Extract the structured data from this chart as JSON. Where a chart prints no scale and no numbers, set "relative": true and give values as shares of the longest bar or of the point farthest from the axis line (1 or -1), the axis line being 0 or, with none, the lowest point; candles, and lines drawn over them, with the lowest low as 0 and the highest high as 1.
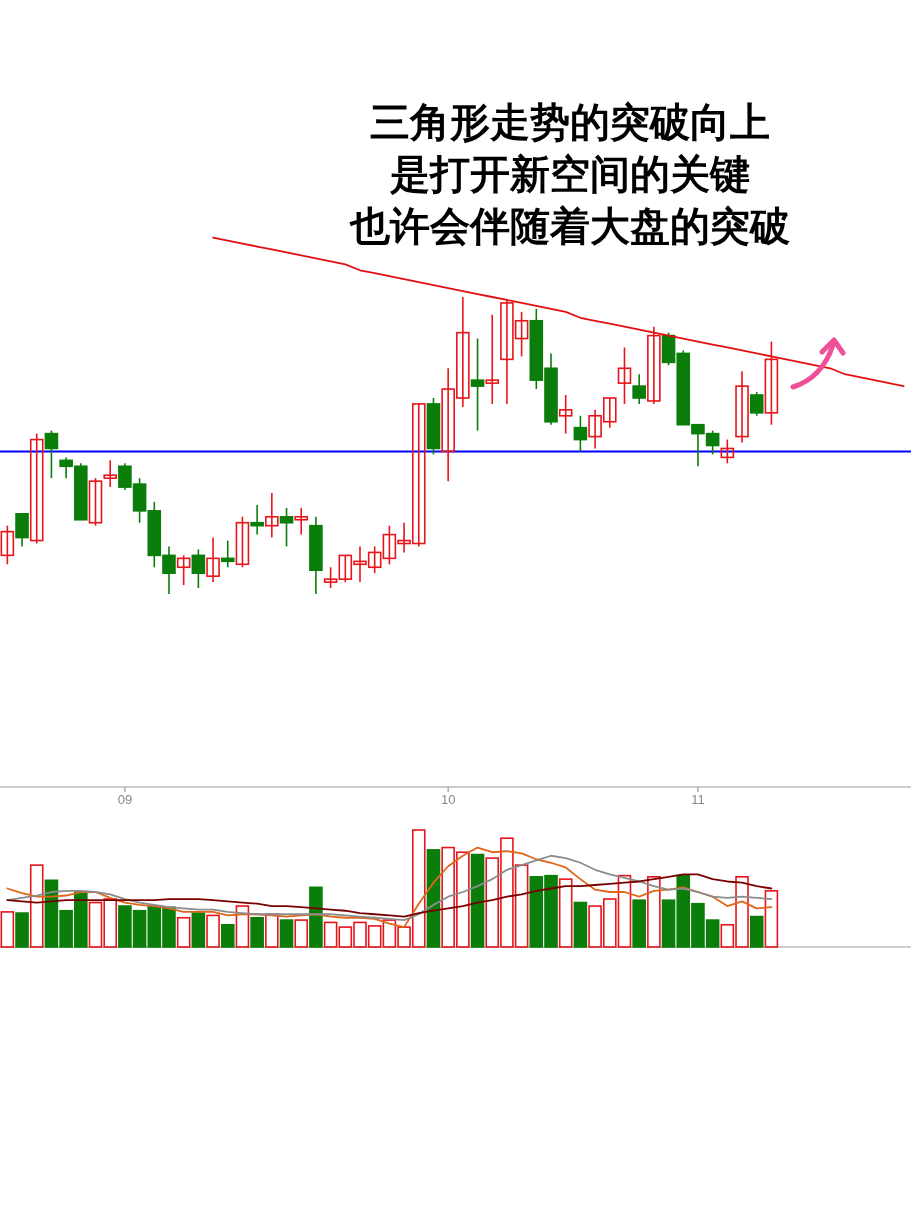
{
  "chart_data": [
    {
      "type": "candlestick",
      "relative": true,
      "annotations": [
        "三角形走势的突破向上",
        "是打开新空间的关键",
        "也许会伴随着大盘的突破"
      ],
      "categories": [
        null,
        null,
        null,
        null,
        null,
        null,
        null,
        null,
        "09",
        null,
        null,
        null,
        null,
        null,
        null,
        null,
        null,
        null,
        null,
        null,
        null,
        null,
        null,
        null,
        null,
        null,
        null,
        null,
        null,
        null,
        "10",
        null,
        null,
        null,
        null,
        null,
        null,
        null,
        null,
        null,
        null,
        null,
        null,
        null,
        null,
        null,
        null,
        "11",
        null,
        null,
        null,
        null,
        null,
        null,
        null,
        null,
        null,
        null,
        null,
        null,
        null,
        null
      ],
      "ohlc": [
        [
          0.13,
          0.23,
          0.1,
          0.21
        ],
        [
          0.27,
          0.27,
          0.16,
          0.19
        ],
        [
          0.18,
          0.54,
          0.17,
          0.52
        ],
        [
          0.54,
          0.55,
          0.39,
          0.49
        ],
        [
          0.45,
          0.46,
          0.39,
          0.43
        ],
        [
          0.43,
          0.44,
          0.25,
          0.25
        ],
        [
          0.24,
          0.39,
          0.23,
          0.38
        ],
        [
          0.39,
          0.45,
          0.36,
          0.4
        ],
        [
          0.43,
          0.44,
          0.35,
          0.36
        ],
        [
          0.37,
          0.39,
          0.24,
          0.28
        ],
        [
          0.28,
          0.31,
          0.09,
          0.13
        ],
        [
          0.13,
          0.16,
          0.0,
          0.07
        ],
        [
          0.09,
          0.13,
          0.03,
          0.12
        ],
        [
          0.13,
          0.15,
          0.02,
          0.07
        ],
        [
          0.06,
          0.19,
          0.04,
          0.12
        ],
        [
          0.12,
          0.18,
          0.09,
          0.11
        ],
        [
          0.1,
          0.26,
          0.09,
          0.24
        ],
        [
          0.24,
          0.3,
          0.2,
          0.23
        ],
        [
          0.23,
          0.34,
          0.19,
          0.26
        ],
        [
          0.26,
          0.29,
          0.16,
          0.24
        ],
        [
          0.25,
          0.29,
          0.2,
          0.26
        ],
        [
          0.23,
          0.26,
          0,
          0.08
        ],
        [
          0.04,
          0.09,
          0.02,
          0.05
        ],
        [
          0.05,
          0.13,
          0.04,
          0.13
        ],
        [
          0.1,
          0.16,
          0.04,
          0.11
        ],
        [
          0.09,
          0.16,
          0.07,
          0.14
        ],
        [
          0.12,
          0.23,
          0.1,
          0.2
        ],
        [
          0.17,
          0.24,
          0.14,
          0.18
        ],
        [
          0.17,
          0.64,
          0.16,
          0.64
        ],
        [
          0.64,
          0.66,
          0.47,
          0.49
        ],
        [
          0.48,
          0.76,
          0.38,
          0.69
        ],
        [
          0.66,
          1,
          0.63,
          0.88
        ],
        [
          0.72,
          0.86,
          0.55,
          0.7
        ],
        [
          0.71,
          0.94,
          0.64,
          0.72
        ],
        [
          0.79,
          0.99,
          0.64,
          0.98
        ],
        [
          0.86,
          0.95,
          0.8,
          0.92
        ],
        [
          0.92,
          0.96,
          0.69,
          0.72
        ],
        [
          0.76,
          0.81,
          0.57,
          0.58
        ],
        [
          0.6,
          0.67,
          0.54,
          0.62
        ],
        [
          0.56,
          0.6,
          0.48,
          0.52
        ],
        [
          0.53,
          0.62,
          0.49,
          0.6
        ],
        [
          0.58,
          0.66,
          0.56,
          0.66
        ],
        [
          0.71,
          0.83,
          0.64,
          0.76
        ],
        [
          0.7,
          0.74,
          0.64,
          0.66
        ],
        [
          0.65,
          0.9,
          0.64,
          0.87
        ],
        [
          0.87,
          0.88,
          0.77,
          0.78
        ],
        [
          0.81,
          0.82,
          0.57,
          0.57
        ],
        [
          0.57,
          0.57,
          0.43,
          0.54
        ],
        [
          0.54,
          0.55,
          0.47,
          0.5
        ],
        [
          0.46,
          0.52,
          0.44,
          0.49
        ],
        [
          0.53,
          0.75,
          0.51,
          0.7
        ],
        [
          0.67,
          0.68,
          0.6,
          0.61
        ],
        [
          0.61,
          0.85,
          0.57,
          0.79
        ],
        null,
        null,
        null,
        null,
        null,
        null,
        null,
        null,
        null
      ],
      "colors": [
        "#e8141b",
        "#0a7d0a",
        "#e8141b",
        "#0a7d0a",
        "#0a7d0a",
        "#0a7d0a",
        "#e8141b",
        "#e8141b",
        "#0a7d0a",
        "#0a7d0a",
        "#0a7d0a",
        "#0a7d0a",
        "#e8141b",
        "#0a7d0a",
        "#e8141b",
        "#0a7d0a",
        "#e8141b",
        "#0a7d0a",
        "#e8141b",
        "#0a7d0a",
        "#e8141b",
        "#0a7d0a",
        "#e8141b",
        "#e8141b",
        "#e8141b",
        "#e8141b",
        "#e8141b",
        "#e8141b",
        "#e8141b",
        "#0a7d0a",
        "#e8141b",
        "#e8141b",
        "#0a7d0a",
        "#e8141b",
        "#e8141b",
        "#e8141b",
        "#0a7d0a",
        "#0a7d0a",
        "#e8141b",
        "#0a7d0a",
        "#e8141b",
        "#e8141b",
        "#e8141b",
        "#0a7d0a",
        "#e8141b",
        "#0a7d0a",
        "#0a7d0a",
        "#0a7d0a",
        "#0a7d0a",
        "#e8141b",
        "#e8141b",
        "#0a7d0a",
        "#e8141b",
        null,
        null,
        null,
        null,
        null,
        null,
        null,
        null,
        null
      ],
      "series": [
        {
          "type": "line",
          "color": "#e01010",
          "values": [
            null,
            null,
            null,
            null,
            null,
            null,
            null,
            null,
            null,
            null,
            null,
            null,
            null,
            null,
            1.2,
            1.19,
            1.18,
            1.17,
            1.16,
            1.15,
            1.14,
            1.13,
            1.12,
            1.11,
            1.09,
            1.08,
            1.07,
            1.06,
            1.05,
            1.04,
            1.03,
            1.02,
            1.01,
            1.0,
            0.99,
            0.98,
            0.97,
            0.96,
            0.95,
            0.93,
            0.92,
            0.91,
            0.9,
            0.89,
            0.88,
            0.87,
            0.86,
            0.85,
            0.84,
            0.83,
            0.82,
            0.81,
            0.8,
            0.79,
            0.78,
            0.77,
            0.76,
            0.74,
            0.73,
            0.72,
            0.71,
            0.7
          ]
        }
      ],
      "ref_lines": [
        {
          "axis": "y",
          "value": 0.48,
          "color": "#0000ff"
        }
      ]
    },
    {
      "type": "bar",
      "relative": true,
      "categories": [
        null,
        null,
        null,
        null,
        null,
        null,
        null,
        null,
        null,
        null,
        null,
        null,
        null,
        null,
        null,
        null,
        null,
        null,
        null,
        null,
        null,
        null,
        null,
        null,
        null,
        null,
        null,
        null,
        null,
        null,
        null,
        null,
        null,
        null,
        null,
        null,
        null,
        null,
        null,
        null,
        null,
        null,
        null,
        null,
        null,
        null,
        null,
        null,
        null,
        null,
        null,
        null,
        null,
        null,
        null,
        null,
        null,
        null,
        null,
        null,
        null,
        null
      ],
      "series": [
        {
          "type": "bar",
          "values": [
            0.3,
            0.29,
            0.7,
            0.57,
            0.31,
            0.47,
            0.38,
            0.41,
            0.35,
            0.31,
            0.35,
            0.34,
            0.25,
            0.29,
            0.27,
            0.19,
            0.35,
            0.25,
            0.28,
            0.23,
            0.23,
            0.51,
            0.21,
            0.17,
            0.21,
            0.18,
            0.23,
            0.17,
            1,
            0.83,
            0.85,
            0.81,
            0.79,
            0.76,
            0.93,
            0.7,
            0.6,
            0.61,
            0.58,
            0.38,
            0.35,
            0.41,
            0.61,
            0.4,
            0.6,
            0.4,
            0.61,
            0.37,
            0.23,
            0.19,
            0.6,
            0.26,
            0.48,
            null,
            null,
            null,
            null,
            null,
            null,
            null,
            null,
            null
          ],
          "colors": [
            "#e8141b",
            "#0a7d0a",
            "#e8141b",
            "#0a7d0a",
            "#0a7d0a",
            "#0a7d0a",
            "#e8141b",
            "#e8141b",
            "#0a7d0a",
            "#0a7d0a",
            "#0a7d0a",
            "#0a7d0a",
            "#e8141b",
            "#0a7d0a",
            "#e8141b",
            "#0a7d0a",
            "#e8141b",
            "#0a7d0a",
            "#e8141b",
            "#0a7d0a",
            "#e8141b",
            "#0a7d0a",
            "#e8141b",
            "#e8141b",
            "#e8141b",
            "#e8141b",
            "#e8141b",
            "#e8141b",
            "#e8141b",
            "#0a7d0a",
            "#e8141b",
            "#e8141b",
            "#0a7d0a",
            "#e8141b",
            "#e8141b",
            "#e8141b",
            "#0a7d0a",
            "#0a7d0a",
            "#e8141b",
            "#0a7d0a",
            "#e8141b",
            "#e8141b",
            "#e8141b",
            "#0a7d0a",
            "#e8141b",
            "#0a7d0a",
            "#0a7d0a",
            "#0a7d0a",
            "#0a7d0a",
            "#e8141b",
            "#e8141b",
            "#0a7d0a",
            "#e8141b",
            null,
            null,
            null,
            null,
            null,
            null,
            null,
            null,
            null
          ]
        },
        {
          "type": "line",
          "color": "#e0661a",
          "values": [
            0.5,
            0.46,
            0.43,
            0.43,
            0.44,
            0.47,
            0.47,
            0.42,
            0.38,
            0.36,
            0.35,
            0.33,
            0.3,
            0.3,
            0.3,
            0.27,
            0.28,
            0.28,
            0.27,
            0.26,
            0.27,
            0.28,
            0.26,
            0.25,
            0.25,
            0.24,
            0.2,
            0.17,
            0.37,
            0.55,
            0.69,
            0.78,
            0.85,
            0.81,
            0.82,
            0.8,
            0.75,
            0.72,
            0.68,
            0.58,
            0.49,
            0.47,
            0.47,
            0.43,
            0.48,
            0.49,
            0.51,
            0.47,
            0.43,
            0.35,
            0.39,
            0.33,
            0.34,
            null,
            null,
            null,
            null,
            null,
            null,
            null,
            null,
            null
          ]
        },
        {
          "type": "line",
          "color": "#8c8c8c",
          "values": [
            0.4,
            0.42,
            0.44,
            0.47,
            0.48,
            0.48,
            0.47,
            0.45,
            0.41,
            0.38,
            0.36,
            0.34,
            0.33,
            0.32,
            0.32,
            0.3,
            0.29,
            0.28,
            0.28,
            0.28,
            0.28,
            0.28,
            0.28,
            0.27,
            0.26,
            0.25,
            0.24,
            0.23,
            0.28,
            0.36,
            0.43,
            0.47,
            0.52,
            0.58,
            0.66,
            0.7,
            0.74,
            0.78,
            0.76,
            0.72,
            0.66,
            0.62,
            0.59,
            0.56,
            0.52,
            0.49,
            0.5,
            0.47,
            0.43,
            0.42,
            0.43,
            0.42,
            0.41,
            null,
            null,
            null,
            null,
            null,
            null,
            null,
            null,
            null
          ]
        },
        {
          "type": "line",
          "color": "#7a0000",
          "values": [
            0.4,
            0.39,
            0.38,
            0.39,
            0.4,
            0.4,
            0.4,
            0.4,
            0.4,
            0.4,
            0.4,
            0.41,
            0.41,
            0.41,
            0.4,
            0.39,
            0.38,
            0.37,
            0.35,
            0.35,
            0.34,
            0.33,
            0.32,
            0.31,
            0.29,
            0.28,
            0.27,
            0.26,
            0.29,
            0.31,
            0.33,
            0.35,
            0.38,
            0.4,
            0.43,
            0.45,
            0.48,
            0.5,
            0.52,
            0.52,
            0.53,
            0.54,
            0.55,
            0.56,
            0.58,
            0.6,
            0.62,
            0.62,
            0.58,
            0.56,
            0.55,
            0.52,
            0.5,
            null,
            null,
            null,
            null,
            null,
            null,
            null,
            null,
            null
          ]
        }
      ]
    }
  ]
}
